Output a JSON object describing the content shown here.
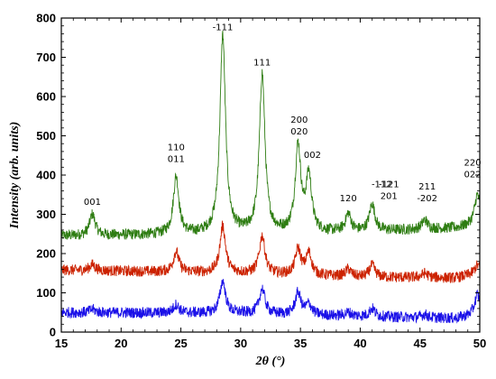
{
  "chart_data": {
    "type": "line",
    "xlabel": "2θ (°)",
    "ylabel": "Intensity (arb. units)",
    "xlim": [
      15,
      50
    ],
    "ylim": [
      0,
      800
    ],
    "xticks": [
      15,
      20,
      25,
      30,
      35,
      40,
      45,
      50
    ],
    "yticks": [
      0,
      100,
      200,
      300,
      400,
      500,
      600,
      700,
      800
    ],
    "grid": false,
    "series": [
      {
        "color": "#2e7d12",
        "baseline": [
          [
            15,
            245
          ],
          [
            30,
            250
          ],
          [
            40,
            255
          ],
          [
            48,
            265
          ],
          [
            50,
            275
          ]
        ],
        "peaks": [
          [
            17.6,
            300
          ],
          [
            24.6,
            395
          ],
          [
            28.5,
            755
          ],
          [
            31.8,
            655
          ],
          [
            34.8,
            470
          ],
          [
            35.7,
            395
          ],
          [
            39.0,
            300
          ],
          [
            41.0,
            325
          ],
          [
            45.4,
            285
          ],
          [
            49.8,
            350
          ]
        ]
      },
      {
        "color": "#cc2200",
        "baseline": [
          [
            15,
            158
          ],
          [
            30,
            150
          ],
          [
            40,
            140
          ],
          [
            48,
            138
          ],
          [
            50,
            150
          ]
        ],
        "peaks": [
          [
            17.6,
            172
          ],
          [
            24.6,
            205
          ],
          [
            28.5,
            270
          ],
          [
            31.8,
            245
          ],
          [
            34.8,
            210
          ],
          [
            35.7,
            200
          ],
          [
            39.0,
            160
          ],
          [
            41.0,
            170
          ],
          [
            45.4,
            150
          ],
          [
            49.8,
            170
          ]
        ]
      },
      {
        "color": "#1a10e8",
        "baseline": [
          [
            15,
            50
          ],
          [
            30,
            48
          ],
          [
            40,
            40
          ],
          [
            48,
            35
          ],
          [
            50,
            45
          ]
        ],
        "peaks": [
          [
            17.6,
            58
          ],
          [
            24.6,
            70
          ],
          [
            28.5,
            130
          ],
          [
            31.8,
            110
          ],
          [
            34.8,
            100
          ],
          [
            35.7,
            70
          ],
          [
            39.0,
            50
          ],
          [
            41.0,
            60
          ],
          [
            45.4,
            45
          ],
          [
            49.8,
            95
          ]
        ]
      }
    ],
    "peak_labels": [
      {
        "lines": [
          "001"
        ],
        "x": 17.6,
        "y": 310
      },
      {
        "lines": [
          "110",
          "011"
        ],
        "x": 24.6,
        "y": 420
      },
      {
        "lines": [
          "-111"
        ],
        "x": 28.5,
        "y": 755
      },
      {
        "lines": [
          "111"
        ],
        "x": 31.8,
        "y": 665
      },
      {
        "lines": [
          "200",
          "020"
        ],
        "x": 34.9,
        "y": 490
      },
      {
        "lines": [
          "002"
        ],
        "x": 36.0,
        "y": 430
      },
      {
        "lines": [
          "120"
        ],
        "x": 39.0,
        "y": 320
      },
      {
        "lines": [
          "-112"
        ],
        "x": 41.8,
        "y": 355
      },
      {
        "lines": [
          "-121",
          "201"
        ],
        "x": 42.4,
        "y": 325
      },
      {
        "lines": [
          "211",
          "-202"
        ],
        "x": 45.6,
        "y": 320
      },
      {
        "lines": [
          "220",
          "022"
        ],
        "x": 49.4,
        "y": 380
      }
    ]
  }
}
